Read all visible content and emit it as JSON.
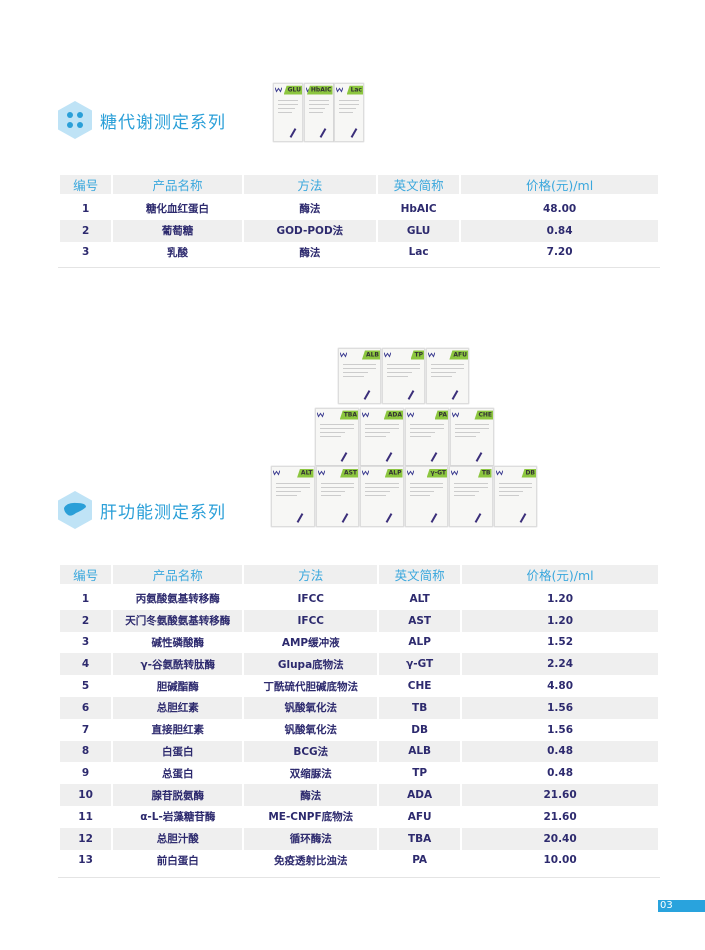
{
  "sections": [
    {
      "title": "糖代谢测定系列",
      "icon": "molecule-hex-icon",
      "products": [
        [
          "GLU",
          "HbAIC",
          "Lac"
        ]
      ],
      "headers": [
        "编号",
        "产品名称",
        "方法",
        "英文简称",
        "价格(元)/ml"
      ],
      "rows": [
        [
          "1",
          "糖化血红蛋白",
          "酶法",
          "HbAIC",
          "48.00"
        ],
        [
          "2",
          "葡萄糖",
          "GOD-POD法",
          "GLU",
          "0.84"
        ],
        [
          "3",
          "乳酸",
          "酶法",
          "Lac",
          "7.20"
        ]
      ]
    },
    {
      "title": "肝功能测定系列",
      "icon": "liver-hex-icon",
      "products": [
        [
          "ALB",
          "TP",
          "AFU"
        ],
        [
          "TBA",
          "ADA",
          "PA",
          "CHE"
        ],
        [
          "ALT",
          "AST",
          "ALP",
          "γ-GT",
          "TB",
          "DB"
        ]
      ],
      "headers": [
        "编号",
        "产品名称",
        "方法",
        "英文简称",
        "价格(元)/ml"
      ],
      "rows": [
        [
          "1",
          "丙氨酸氨基转移酶",
          "IFCC",
          "ALT",
          "1.20"
        ],
        [
          "2",
          "天门冬氨酸氨基转移酶",
          "IFCC",
          "AST",
          "1.20"
        ],
        [
          "3",
          "碱性磷酸酶",
          "AMP缓冲液",
          "ALP",
          "1.52"
        ],
        [
          "4",
          "γ-谷氨酰转肽酶",
          "Glupa底物法",
          "γ-GT",
          "2.24"
        ],
        [
          "5",
          "胆碱酯酶",
          "丁酰硫代胆碱底物法",
          "CHE",
          "4.80"
        ],
        [
          "6",
          "总胆红素",
          "钒酸氧化法",
          "TB",
          "1.56"
        ],
        [
          "7",
          "直接胆红素",
          "钒酸氧化法",
          "DB",
          "1.56"
        ],
        [
          "8",
          "白蛋白",
          "BCG法",
          "ALB",
          "0.48"
        ],
        [
          "9",
          "总蛋白",
          "双缩脲法",
          "TP",
          "0.48"
        ],
        [
          "10",
          "腺苷脱氨酶",
          "酶法",
          "ADA",
          "21.60"
        ],
        [
          "11",
          "α-L-岩藻糖苷酶",
          "ME-CNPF底物法",
          "AFU",
          "21.60"
        ],
        [
          "12",
          "总胆汁酸",
          "循环酶法",
          "TBA",
          "20.40"
        ],
        [
          "13",
          "前白蛋白",
          "免疫透射比浊法",
          "PA",
          "10.00"
        ]
      ]
    }
  ],
  "page_number": "03",
  "colors": {
    "accent": "#29a3dd",
    "label_green": "#8cc63f",
    "text": "#2d2a6e"
  }
}
